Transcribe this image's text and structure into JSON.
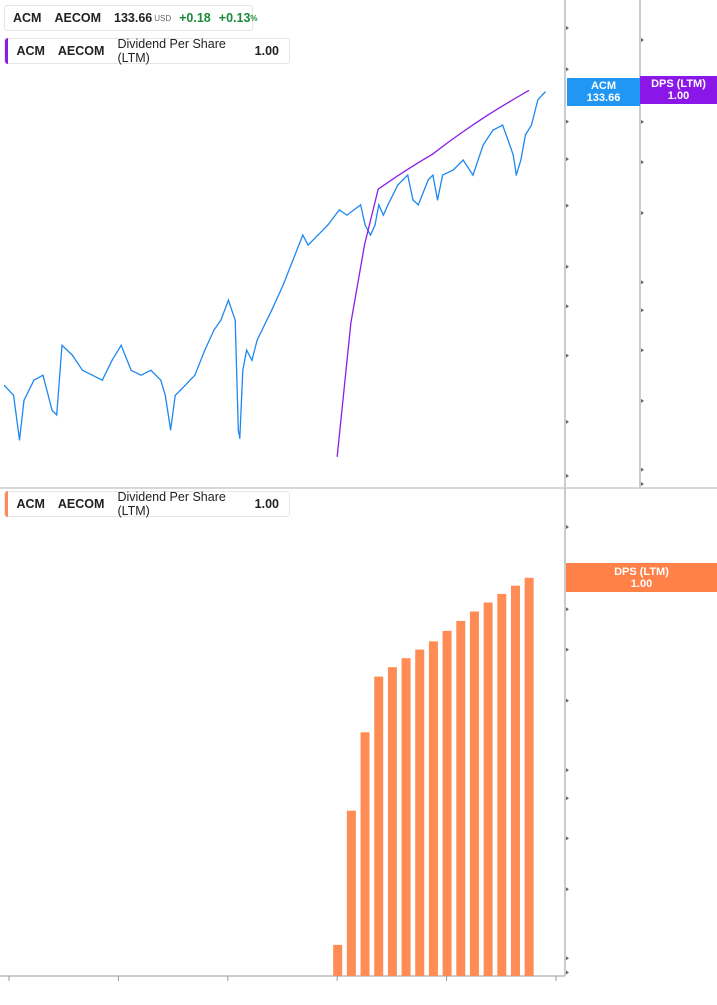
{
  "legends": {
    "price": {
      "ticker": "ACM",
      "name": "AECOM",
      "price": "133.66",
      "currency": "USD",
      "change": "+0.18",
      "change_pct": "+0.13",
      "pct_sign": "%",
      "color": "#1e88f0"
    },
    "dps_top": {
      "ticker": "ACM",
      "name": "AECOM",
      "metric": "Dividend Per Share (LTM)",
      "value": "1.00",
      "color": "#8a1ee8"
    },
    "dps_bottom": {
      "ticker": "ACM",
      "name": "AECOM",
      "metric": "Dividend Per Share (LTM)",
      "value": "1.00",
      "color": "#ff8a55"
    }
  },
  "badges": {
    "price": {
      "label": "ACM",
      "value": "133.66",
      "color": "#2196f3"
    },
    "dps_top": {
      "label": "DPS (LTM)",
      "value": "1.00",
      "color": "#8a17e8"
    },
    "dps_bottom": {
      "label": "DPS (LTM)",
      "value": "1.00",
      "color": "#ff8148"
    }
  },
  "chart_data": [
    {
      "type": "line",
      "pane": "top",
      "scale": "log",
      "series": [
        {
          "name": "ACM",
          "axis": "left",
          "color": "#1e88f0",
          "points": [
            [
              "2015-12-01",
              30.1
            ],
            [
              "2016-02-01",
              28.6
            ],
            [
              "2016-03-10",
              22.8
            ],
            [
              "2016-04-10",
              27.9
            ],
            [
              "2016-06-15",
              30.9
            ],
            [
              "2016-08-15",
              31.7
            ],
            [
              "2016-10-15",
              26.5
            ],
            [
              "2016-11-15",
              25.9
            ],
            [
              "2016-12-20",
              36.9
            ],
            [
              "2017-02-28",
              35.1
            ],
            [
              "2017-05-05",
              32.5
            ],
            [
              "2017-07-10",
              31.7
            ],
            [
              "2017-09-15",
              30.9
            ],
            [
              "2017-11-20",
              34.2
            ],
            [
              "2018-01-20",
              36.9
            ],
            [
              "2018-03-25",
              32.5
            ],
            [
              "2018-05-30",
              31.7
            ],
            [
              "2018-08-05",
              32.5
            ],
            [
              "2018-10-10",
              30.9
            ],
            [
              "2018-11-10",
              28.6
            ],
            [
              "2018-12-15",
              24.0
            ],
            [
              "2019-01-15",
              28.6
            ],
            [
              "2019-03-20",
              30.1
            ],
            [
              "2019-05-25",
              31.7
            ],
            [
              "2019-07-30",
              36.0
            ],
            [
              "2019-10-01",
              39.9
            ],
            [
              "2019-11-15",
              41.9
            ],
            [
              "2020-01-05",
              46.4
            ],
            [
              "2020-02-20",
              41.9
            ],
            [
              "2020-03-10",
              24.0
            ],
            [
              "2020-03-20",
              23.0
            ],
            [
              "2020-04-10",
              32.5
            ],
            [
              "2020-05-05",
              36.0
            ],
            [
              "2020-06-10",
              34.2
            ],
            [
              "2020-07-15",
              37.9
            ],
            [
              "2020-10-20",
              44.1
            ],
            [
              "2021-01-05",
              50.1
            ],
            [
              "2021-03-10",
              56.9
            ],
            [
              "2021-05-15",
              64.6
            ],
            [
              "2021-06-20",
              61.4
            ],
            [
              "2021-08-25",
              64.6
            ],
            [
              "2021-10-30",
              68.0
            ],
            [
              "2022-01-15",
              73.4
            ],
            [
              "2022-03-05",
              71.5
            ],
            [
              "2022-06-05",
              75.3
            ],
            [
              "2022-07-05",
              68.0
            ],
            [
              "2022-08-10",
              64.6
            ],
            [
              "2022-09-10",
              68.0
            ],
            [
              "2022-10-05",
              75.3
            ],
            [
              "2022-11-05",
              71.5
            ],
            [
              "2022-12-05",
              75.3
            ],
            [
              "2023-02-10",
              83.3
            ],
            [
              "2023-04-15",
              87.6
            ],
            [
              "2023-05-20",
              77.2
            ],
            [
              "2023-06-25",
              75.3
            ],
            [
              "2023-08-30",
              85.5
            ],
            [
              "2023-10-01",
              87.6
            ],
            [
              "2023-11-01",
              77.2
            ],
            [
              "2023-12-05",
              87.6
            ],
            [
              "2024-02-15",
              89.9
            ],
            [
              "2024-04-20",
              94.6
            ],
            [
              "2024-06-25",
              87.6
            ],
            [
              "2024-09-01",
              102
            ],
            [
              "2024-11-05",
              110
            ],
            [
              "2025-01-10",
              113
            ],
            [
              "2025-02-15",
              104.7
            ],
            [
              "2025-03-20",
              97
            ],
            [
              "2025-04-10",
              87.6
            ],
            [
              "2025-05-10",
              94.6
            ],
            [
              "2025-06-10",
              107.4
            ],
            [
              "2025-07-20",
              113
            ],
            [
              "2025-09-01",
              128.3
            ],
            [
              "2025-10-01",
              131.7
            ],
            [
              "2025-10-20",
              133.66
            ]
          ]
        },
        {
          "name": "DPS (LTM)",
          "axis": "right",
          "color": "#8a1ee8",
          "points": [
            [
              "2022-01-01",
              0.15
            ],
            [
              "2022-04-01",
              0.3
            ],
            [
              "2022-07-01",
              0.45
            ],
            [
              "2022-10-01",
              0.6
            ],
            [
              "2023-01-01",
              0.63
            ],
            [
              "2023-04-01",
              0.66
            ],
            [
              "2023-07-01",
              0.69
            ],
            [
              "2023-10-01",
              0.72
            ],
            [
              "2024-01-01",
              0.76
            ],
            [
              "2024-04-01",
              0.8
            ],
            [
              "2024-07-01",
              0.84
            ],
            [
              "2024-10-01",
              0.88
            ],
            [
              "2025-01-01",
              0.92
            ],
            [
              "2025-04-01",
              0.96
            ],
            [
              "2025-07-01",
              1.0
            ]
          ]
        }
      ],
      "left_ticks": [
        "185.00",
        "150.00",
        "115.00",
        "95.00",
        "75.00",
        "55.00",
        "45.00",
        "35.00",
        "25.00",
        "19.00"
      ],
      "right_ticks": [
        "1.30",
        "0.85",
        "0.69",
        "0.53",
        "0.37",
        "0.32",
        "0.26",
        "0.20",
        "0.14",
        "0.13"
      ]
    },
    {
      "type": "bar",
      "pane": "bottom",
      "scale": "log",
      "color": "#ff8c55",
      "categories": [
        "2022-01",
        "2022-04",
        "2022-07",
        "2022-10",
        "2023-01",
        "2023-04",
        "2023-07",
        "2023-10",
        "2024-01",
        "2024-04",
        "2024-07",
        "2024-10",
        "2025-01",
        "2025-04",
        "2025-07"
      ],
      "values": [
        0.15,
        0.3,
        0.45,
        0.6,
        0.63,
        0.66,
        0.69,
        0.72,
        0.76,
        0.8,
        0.84,
        0.88,
        0.92,
        0.96,
        1.0
      ],
      "y_ticks": [
        "1.30",
        "0.85",
        "0.69",
        "0.53",
        "0.37",
        "0.32",
        "0.26",
        "0.20",
        "0.14",
        "0.13"
      ],
      "x_ticks": [
        "2016",
        "2018",
        "2020",
        "2022",
        "2024",
        "2026"
      ]
    }
  ]
}
